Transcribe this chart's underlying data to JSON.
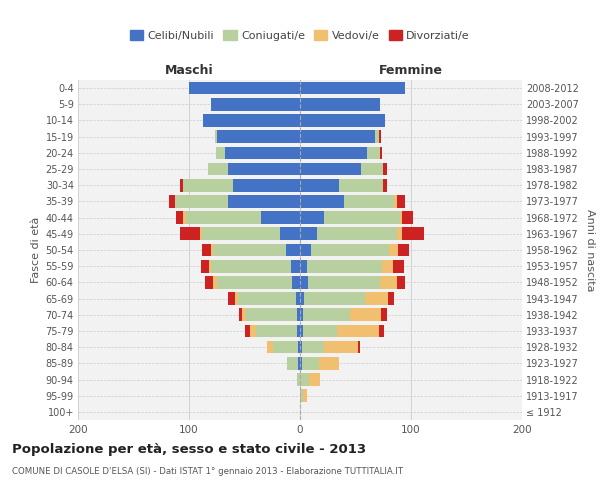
{
  "age_groups": [
    "100+",
    "95-99",
    "90-94",
    "85-89",
    "80-84",
    "75-79",
    "70-74",
    "65-69",
    "60-64",
    "55-59",
    "50-54",
    "45-49",
    "40-44",
    "35-39",
    "30-34",
    "25-29",
    "20-24",
    "15-19",
    "10-14",
    "5-9",
    "0-4"
  ],
  "birth_years": [
    "≤ 1912",
    "1913-1917",
    "1918-1922",
    "1923-1927",
    "1928-1932",
    "1933-1937",
    "1938-1942",
    "1943-1947",
    "1948-1952",
    "1953-1957",
    "1958-1962",
    "1963-1967",
    "1968-1972",
    "1973-1977",
    "1978-1982",
    "1983-1987",
    "1988-1992",
    "1993-1997",
    "1998-2002",
    "2003-2007",
    "2008-2012"
  ],
  "males": {
    "celibi": [
      0,
      0,
      0,
      2,
      2,
      3,
      3,
      4,
      7,
      8,
      13,
      18,
      35,
      65,
      60,
      65,
      68,
      75,
      87,
      80,
      100
    ],
    "coniugati": [
      0,
      0,
      3,
      10,
      22,
      37,
      46,
      52,
      68,
      72,
      65,
      70,
      68,
      48,
      45,
      18,
      8,
      2,
      0,
      0,
      0
    ],
    "vedovi": [
      0,
      0,
      0,
      0,
      6,
      5,
      3,
      3,
      3,
      2,
      2,
      2,
      2,
      0,
      0,
      0,
      0,
      0,
      0,
      0,
      0
    ],
    "divorziati": [
      0,
      0,
      0,
      0,
      0,
      5,
      3,
      6,
      8,
      7,
      8,
      18,
      7,
      5,
      3,
      0,
      0,
      0,
      0,
      0,
      0
    ]
  },
  "females": {
    "nubili": [
      0,
      0,
      0,
      2,
      2,
      3,
      3,
      4,
      7,
      6,
      10,
      15,
      22,
      40,
      35,
      55,
      60,
      68,
      77,
      72,
      95
    ],
    "coniugate": [
      0,
      3,
      8,
      15,
      20,
      30,
      42,
      55,
      65,
      68,
      70,
      72,
      68,
      45,
      40,
      20,
      12,
      3,
      0,
      0,
      0
    ],
    "vedove": [
      0,
      3,
      10,
      18,
      30,
      38,
      28,
      20,
      15,
      10,
      8,
      5,
      2,
      2,
      0,
      0,
      0,
      0,
      0,
      0,
      0
    ],
    "divorziate": [
      0,
      0,
      0,
      0,
      2,
      5,
      5,
      6,
      8,
      10,
      10,
      20,
      10,
      8,
      3,
      3,
      2,
      2,
      0,
      0,
      0
    ]
  },
  "colors": {
    "celibi": "#4472c4",
    "coniugati": "#b8cfa0",
    "vedovi": "#f0c070",
    "divorziati": "#cc2222"
  },
  "title": "Popolazione per età, sesso e stato civile - 2013",
  "subtitle": "COMUNE DI CASOLE D'ELSA (SI) - Dati ISTAT 1° gennaio 2013 - Elaborazione TUTTITALIA.IT",
  "xlabel_left": "Maschi",
  "xlabel_right": "Femmine",
  "ylabel_left": "Fasce di età",
  "ylabel_right": "Anni di nascita",
  "xlim": 200,
  "background_color": "#ffffff",
  "grid_color": "#cccccc",
  "ax_bg_color": "#f2f2f2"
}
